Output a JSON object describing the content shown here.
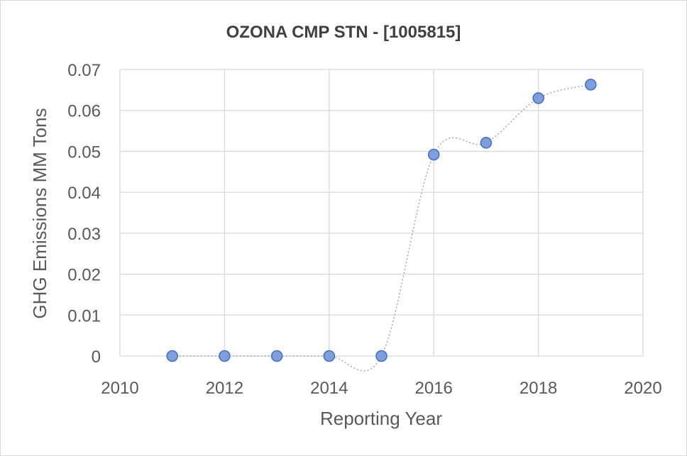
{
  "chart_data": {
    "type": "scatter",
    "title": "OZONA CMP STN - [1005815]",
    "xlabel": "Reporting Year",
    "ylabel": "GHG Emissions MM Tons",
    "xlim": [
      2010,
      2020
    ],
    "ylim": [
      0,
      0.07
    ],
    "x_ticks": [
      2010,
      2012,
      2014,
      2016,
      2018,
      2020
    ],
    "y_ticks": [
      0,
      0.01,
      0.02,
      0.03,
      0.04,
      0.05,
      0.06,
      0.07
    ],
    "x_tick_labels": [
      "2010",
      "2012",
      "2014",
      "2016",
      "2018",
      "2020"
    ],
    "y_tick_labels": [
      "0",
      "0.01",
      "0.02",
      "0.03",
      "0.04",
      "0.05",
      "0.06",
      "0.07"
    ],
    "grid": true,
    "trendline": "smoothed dotted",
    "series": [
      {
        "name": "GHG Emissions",
        "x": [
          2011,
          2012,
          2013,
          2014,
          2015,
          2016,
          2017,
          2018,
          2019
        ],
        "y": [
          0,
          0,
          0,
          0,
          0,
          0.0492,
          0.0521,
          0.063,
          0.0663
        ]
      }
    ],
    "colors": {
      "marker_fill": "#7f9fdc",
      "marker_stroke": "#4472c4",
      "line": "#a6a6a6",
      "grid": "#d9d9d9"
    }
  }
}
